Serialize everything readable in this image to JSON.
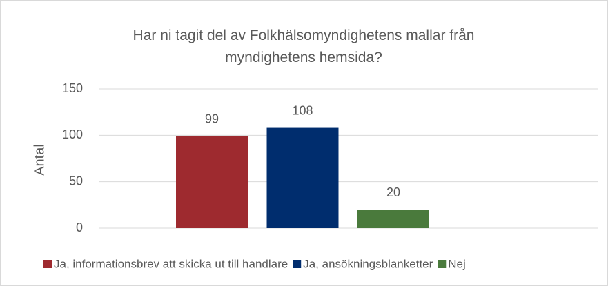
{
  "chart_data": {
    "type": "bar",
    "title": "Har ni tagit del av Folkhälsomyndighetens mallar från myndighetens hemsida?",
    "y_label": "Antal",
    "categories": [
      null
    ],
    "series": [
      {
        "name": "Ja, informationsbrev att skicka ut till handlare",
        "color": "#9e2a2f",
        "values": [
          99
        ]
      },
      {
        "name": "Ja, ansökningsblanketter",
        "color": "#002d6e",
        "values": [
          108
        ]
      },
      {
        "name": "Nej",
        "color": "#4a7a3c",
        "values": [
          20
        ]
      }
    ],
    "ylim": [
      0,
      150
    ],
    "yticks": [
      0,
      50,
      100,
      150
    ],
    "grid": true,
    "legend": "bottom",
    "data_labels": true
  }
}
